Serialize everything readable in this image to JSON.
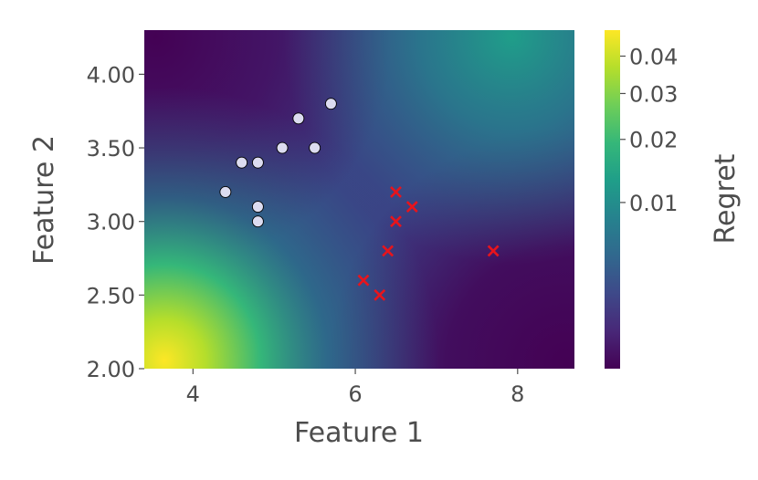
{
  "chart_data": {
    "type": "scatter",
    "xlabel": "Feature 1",
    "ylabel": "Feature 2",
    "xlim": [
      3.4,
      8.7
    ],
    "ylim": [
      2.0,
      4.3
    ],
    "xticks": [
      4,
      6,
      8
    ],
    "yticks": [
      {
        "value": 2.0,
        "label": "2.00"
      },
      {
        "value": 2.5,
        "label": "2.50"
      },
      {
        "value": 3.0,
        "label": "3.00"
      },
      {
        "value": 3.5,
        "label": "3.50"
      },
      {
        "value": 4.0,
        "label": "4.00"
      }
    ],
    "series": [
      {
        "color": "#dcdcf0",
        "edgecolor": "#000000",
        "marker": "o",
        "x": [
          4.4,
          4.6,
          4.8,
          4.8,
          4.8,
          5.1,
          5.3,
          5.5,
          5.7
        ],
        "y": [
          3.2,
          3.4,
          3.4,
          3.1,
          3.0,
          3.5,
          3.7,
          3.5,
          3.8
        ]
      },
      {
        "color": "#e8141c",
        "marker": "x",
        "x": [
          6.5,
          6.7,
          6.5,
          6.4,
          7.7,
          6.1,
          6.3
        ],
        "y": [
          3.2,
          3.1,
          3.0,
          2.8,
          2.8,
          2.6,
          2.5
        ]
      }
    ],
    "colorbar": {
      "label": "Regret",
      "cmap": "viridis",
      "norm": "power",
      "gamma": 0.4,
      "lim": [
        0.0001,
        0.048
      ],
      "ticks": [
        0.01,
        0.02,
        0.03,
        0.04
      ]
    }
  }
}
